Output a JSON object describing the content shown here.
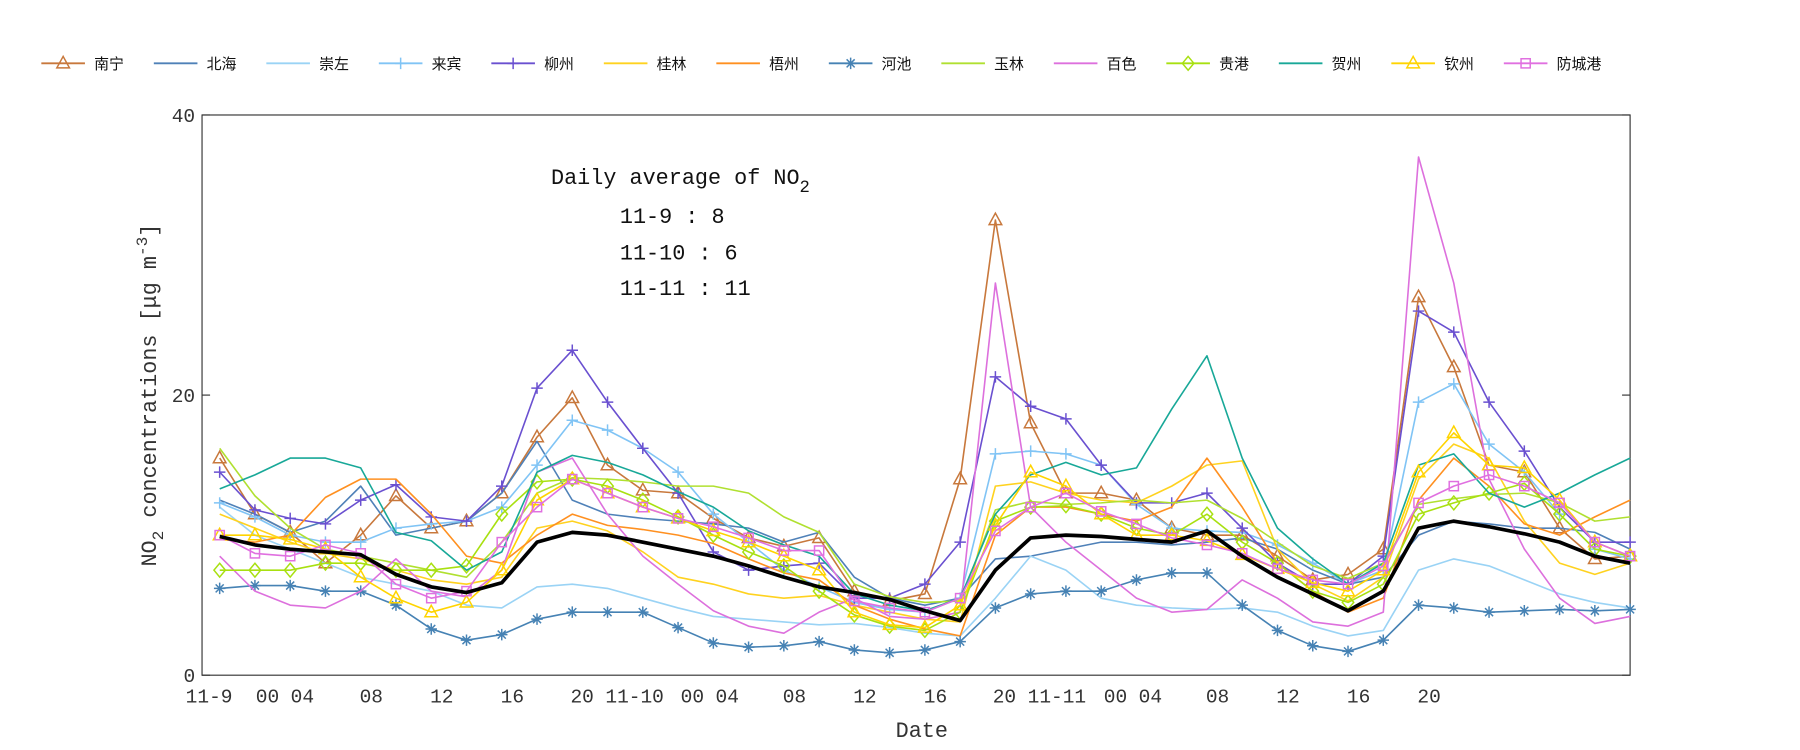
{
  "chart_data": {
    "type": "line",
    "xlabel": "Date",
    "ylabel": "NO2 concentrations [μg m-3]",
    "ylabel_parts": {
      "pre": "NO",
      "sub": "2",
      "mid": " concentrations [μg m",
      "sup": "-3",
      "post": "]"
    },
    "ylim": [
      0,
      40
    ],
    "xlim": [
      0,
      81
    ],
    "yticks": [
      0,
      20,
      40
    ],
    "xticks": [
      {
        "label": "11-9",
        "x": 0.4
      },
      {
        "label": "00",
        "x": 3.8
      },
      {
        "label": "04",
        "x": 5.6
      },
      {
        "label": "08",
        "x": 9.6
      },
      {
        "label": "12",
        "x": 13.6
      },
      {
        "label": "16",
        "x": 17.6
      },
      {
        "label": "20",
        "x": 21.6
      },
      {
        "label": "11-10",
        "x": 24.5
      },
      {
        "label": "00",
        "x": 28.0
      },
      {
        "label": "04",
        "x": 29.6
      },
      {
        "label": "08",
        "x": 33.6
      },
      {
        "label": "12",
        "x": 37.6
      },
      {
        "label": "16",
        "x": 41.6
      },
      {
        "label": "20",
        "x": 45.6
      },
      {
        "label": "11-11",
        "x": 48.4
      },
      {
        "label": "00",
        "x": 52.0
      },
      {
        "label": "04",
        "x": 53.6
      },
      {
        "label": "08",
        "x": 57.6
      },
      {
        "label": "12",
        "x": 61.6
      },
      {
        "label": "16",
        "x": 65.6
      },
      {
        "label": "20",
        "x": 69.6
      }
    ],
    "grid": false,
    "legend_placement": "top (outside, horizontal)",
    "annotation": {
      "title_pre": "Daily average of NO",
      "title_sub": "2",
      "lines": [
        "11-9 : 8",
        "11-10 : 6",
        "11-11 : 11"
      ]
    },
    "x": [
      1,
      3,
      5,
      7,
      9,
      11,
      13,
      15,
      17,
      19,
      21,
      23,
      25,
      27,
      29,
      31,
      33,
      35,
      37,
      39,
      41,
      43,
      45,
      47,
      49,
      51,
      53,
      55,
      57,
      59,
      61,
      63,
      65,
      67,
      69,
      71,
      73,
      75,
      77,
      79,
      81
    ],
    "series": [
      {
        "name": "南宁",
        "color": "#c8783c",
        "marker": "triangle",
        "values": [
          15.5,
          11.5,
          10.2,
          8.0,
          10,
          12.8,
          10.5,
          11,
          13,
          17,
          19.8,
          15,
          13.2,
          13,
          11.2,
          9.8,
          9.2,
          9.8,
          6,
          5.3,
          5.8,
          14,
          32.5,
          18,
          13,
          13,
          12.5,
          10.5,
          10,
          10,
          8.5,
          6.8,
          7.2,
          9,
          27,
          22,
          15,
          14.5,
          10.5,
          8.3,
          8.5
        ]
      },
      {
        "name": "北海",
        "color": "#4f81b8",
        "marker": "none",
        "values": [
          12.5,
          11.5,
          10.2,
          11,
          13.5,
          10,
          10.5,
          11,
          13,
          16.7,
          12.5,
          11.5,
          11.2,
          11,
          10.8,
          10.5,
          9.5,
          10.2,
          7,
          5.5,
          5,
          5.5,
          8.3,
          8.5,
          9,
          9.5,
          9.5,
          9.3,
          9.5,
          9.8,
          9,
          7.5,
          6.5,
          7,
          10,
          11,
          10.8,
          10.5,
          10.5,
          10.2,
          9
        ]
      },
      {
        "name": "崇左",
        "color": "#9ad3f5",
        "marker": "none",
        "values": [
          12,
          10,
          9,
          8,
          7,
          6.5,
          6,
          5,
          4.8,
          6.3,
          6.5,
          6.2,
          5.5,
          4.8,
          4.2,
          4,
          3.8,
          3.6,
          3.7,
          3.4,
          3,
          2.8,
          5.5,
          8.5,
          7.5,
          5.5,
          5,
          4.8,
          4.7,
          4.8,
          4.5,
          3.5,
          2.8,
          3.2,
          7.5,
          8.3,
          7.8,
          6.8,
          5.8,
          5.2,
          4.8
        ]
      },
      {
        "name": "来宾",
        "color": "#80c4f5",
        "marker": "plus",
        "values": [
          12.3,
          11.3,
          10,
          9.5,
          9.5,
          10.5,
          10.8,
          11,
          12,
          15,
          18.2,
          17.5,
          16.2,
          14.5,
          11.5,
          9.5,
          7.5,
          6.3,
          5.2,
          4.7,
          4.5,
          5.5,
          15.8,
          16,
          15.8,
          15,
          12.2,
          10.5,
          10.3,
          10.2,
          9.3,
          8,
          6.5,
          7.5,
          19.5,
          20.8,
          16.5,
          14.5,
          11.5,
          9,
          8.3
        ]
      },
      {
        "name": "柳州",
        "color": "#6a50d0",
        "marker": "plus",
        "values": [
          14.5,
          11.8,
          11.2,
          10.8,
          12.5,
          13.6,
          11.3,
          11,
          13.5,
          20.5,
          23.2,
          19.5,
          16.2,
          13,
          8.8,
          7.5,
          7.8,
          8,
          5.5,
          5.5,
          6.5,
          9.5,
          21.3,
          19.2,
          18.3,
          15,
          12.3,
          12.3,
          13,
          10.5,
          8,
          6.5,
          6.5,
          8.5,
          26,
          24.5,
          19.5,
          16,
          12,
          9.5,
          9.5
        ]
      },
      {
        "name": "桂林",
        "color": "#ffd21f",
        "marker": "none",
        "values": [
          11.5,
          10.5,
          9.5,
          8.7,
          8.3,
          7.5,
          6.8,
          6.5,
          7,
          10.5,
          11,
          10.3,
          8.8,
          7,
          6.5,
          5.8,
          5.5,
          5.7,
          5,
          4.5,
          4,
          3.8,
          13.5,
          13.8,
          13,
          12.5,
          12.3,
          13.5,
          15,
          15.3,
          9,
          6.5,
          5.3,
          7,
          14,
          16.5,
          15.5,
          11,
          8,
          7.2,
          8
        ]
      },
      {
        "name": "梧州",
        "color": "#ff9020",
        "marker": "none",
        "values": [
          9.7,
          9.5,
          10,
          12.7,
          14,
          14,
          11.5,
          8.5,
          8,
          10,
          11.5,
          10.7,
          10.4,
          10,
          9.4,
          8.3,
          7.3,
          6.8,
          5,
          4,
          3.3,
          2.8,
          10,
          12,
          12,
          11.5,
          11,
          12,
          15.5,
          12,
          8,
          6,
          4.5,
          5.5,
          12.5,
          15.5,
          13.5,
          10.8,
          10,
          11.3,
          12.5
        ]
      },
      {
        "name": "河池",
        "color": "#4682b4",
        "marker": "asterisk",
        "values": [
          6.2,
          6.4,
          6.4,
          6.0,
          6.0,
          5.0,
          3.3,
          2.5,
          2.9,
          4.0,
          4.5,
          4.5,
          4.5,
          3.4,
          2.3,
          2.0,
          2.1,
          2.4,
          1.8,
          1.6,
          1.8,
          2.4,
          4.8,
          5.8,
          6.0,
          6.0,
          6.8,
          7.3,
          7.3,
          5.0,
          3.2,
          2.1,
          1.7,
          2.5,
          5.0,
          4.8,
          4.5,
          4.6,
          4.7,
          4.6,
          4.7
        ]
      },
      {
        "name": "玉林",
        "color": "#b0e030",
        "marker": "none",
        "values": [
          16.2,
          12.8,
          10.5,
          9.0,
          8.5,
          8,
          7.5,
          7,
          9.5,
          13,
          14.1,
          14,
          13.8,
          13.5,
          13.5,
          13,
          11.3,
          10.2,
          6.5,
          5.6,
          5.2,
          5.3,
          11.8,
          12.4,
          12.2,
          12.3,
          12.5,
          12.3,
          12.5,
          11.2,
          9.5,
          7.8,
          6.9,
          8,
          12.2,
          12.6,
          12.9,
          13,
          12.3,
          11,
          11.3
        ]
      },
      {
        "name": "百色",
        "color": "#dd70dd",
        "marker": "none",
        "values": [
          8.5,
          6,
          5.0,
          4.8,
          6,
          8.3,
          6,
          5.6,
          7.5,
          14.5,
          15.5,
          11.5,
          8.5,
          6.5,
          4.6,
          3.5,
          3.0,
          4.5,
          5.5,
          4.2,
          4,
          4.5,
          28,
          12,
          9.5,
          7.5,
          5.5,
          4.5,
          4.7,
          6.8,
          5.5,
          3.8,
          3.5,
          4.5,
          37,
          28,
          14,
          9,
          5.5,
          3.7,
          4.2
        ]
      },
      {
        "name": "贵港",
        "color": "#a8e010",
        "marker": "diamond",
        "values": [
          7.5,
          7.5,
          7.5,
          8,
          8,
          7.5,
          7.5,
          7.8,
          11.5,
          13.8,
          14,
          13.5,
          12.5,
          11.3,
          10,
          8.8,
          7.8,
          6,
          4.3,
          3.5,
          3.2,
          4.5,
          11,
          12,
          12.1,
          11.5,
          10.5,
          10,
          11.5,
          9.5,
          8,
          6,
          5.2,
          6.5,
          11.5,
          12.3,
          13,
          13.7,
          11.5,
          9,
          8.5
        ]
      },
      {
        "name": "贺州",
        "color": "#18a898",
        "marker": "none",
        "values": [
          13.3,
          14.3,
          15.5,
          15.5,
          14.8,
          10.2,
          9.6,
          7.5,
          8.8,
          14.5,
          15.7,
          15.2,
          14.3,
          13.1,
          12,
          10.3,
          9.3,
          8.5,
          5.8,
          5,
          4.6,
          5.5,
          11.5,
          14.3,
          15.2,
          14.3,
          14.8,
          19,
          22.8,
          15.5,
          10.5,
          8.3,
          6.5,
          8,
          15,
          15.8,
          13,
          12,
          13,
          14.3,
          15.5
        ]
      },
      {
        "name": "钦州",
        "color": "#ffd400",
        "marker": "triangle",
        "values": [
          10,
          10,
          9.7,
          9,
          7,
          5.5,
          4.5,
          5.2,
          7.5,
          12.5,
          14,
          13,
          12,
          11.2,
          10.3,
          9.5,
          8.5,
          7.5,
          4.5,
          3.6,
          3.4,
          5,
          10.7,
          14.5,
          13.5,
          11.5,
          10,
          10,
          9.6,
          8.6,
          7.6,
          6.6,
          6,
          7.5,
          14.5,
          17.3,
          15,
          14.8,
          12.5,
          9.5,
          8.5
        ]
      },
      {
        "name": "防城港",
        "color": "#e070e0",
        "marker": "square",
        "values": [
          10,
          8.7,
          8.5,
          9.3,
          8.7,
          6.5,
          5.5,
          6,
          9.5,
          12,
          14,
          13,
          12,
          11.2,
          10.6,
          9.8,
          8.9,
          8.9,
          5.3,
          4.8,
          4.5,
          5.5,
          10.3,
          12,
          13,
          11.7,
          10.8,
          9.8,
          9.3,
          8.7,
          7.6,
          6.8,
          6.5,
          7.8,
          12.3,
          13.5,
          14.3,
          13.5,
          12.3,
          9.5,
          8.5
        ]
      },
      {
        "color": "#000000",
        "marker": "none",
        "bold": true,
        "values": [
          9.9,
          9.3,
          9.0,
          8.8,
          8.6,
          7.2,
          6.3,
          5.9,
          6.6,
          9.5,
          10.2,
          10.0,
          9.5,
          9.0,
          8.5,
          7.8,
          7.0,
          6.3,
          5.9,
          5.4,
          4.6,
          3.9,
          7.5,
          9.8,
          10.0,
          9.9,
          9.7,
          9.5,
          10.3,
          8.5,
          7.0,
          5.8,
          4.6,
          6.0,
          10.5,
          11.0,
          10.6,
          10.1,
          9.5,
          8.5,
          8.0
        ]
      }
    ]
  }
}
